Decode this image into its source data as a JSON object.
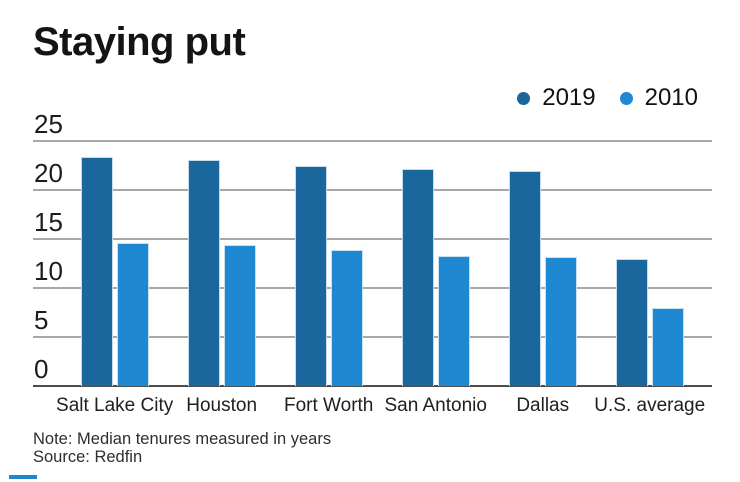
{
  "chart_data": {
    "type": "bar",
    "title": "Staying put",
    "categories": [
      "Salt Lake City",
      "Houston",
      "Fort Worth",
      "San Antonio",
      "Dallas",
      "U.S. average"
    ],
    "series": [
      {
        "name": "2019",
        "color": "#1a679e",
        "values": [
          23.4,
          23.1,
          22.5,
          22.1,
          21.9,
          13.0
        ]
      },
      {
        "name": "2010",
        "color": "#1e88d2",
        "values": [
          14.6,
          14.4,
          13.9,
          13.3,
          13.2,
          8.0
        ]
      }
    ],
    "xlabel": "",
    "ylabel": "",
    "ylim": [
      0,
      25
    ],
    "yticks": [
      0,
      5,
      10,
      15,
      20,
      25
    ],
    "grid": true,
    "legend_position": "top-right",
    "note": "Note: Median tenures measured in years",
    "source": "Source: Redfin"
  },
  "colors": {
    "gridline": "#a8a8a8",
    "axis": "#4d4d4d",
    "brand_dash": "#1d86ce"
  }
}
